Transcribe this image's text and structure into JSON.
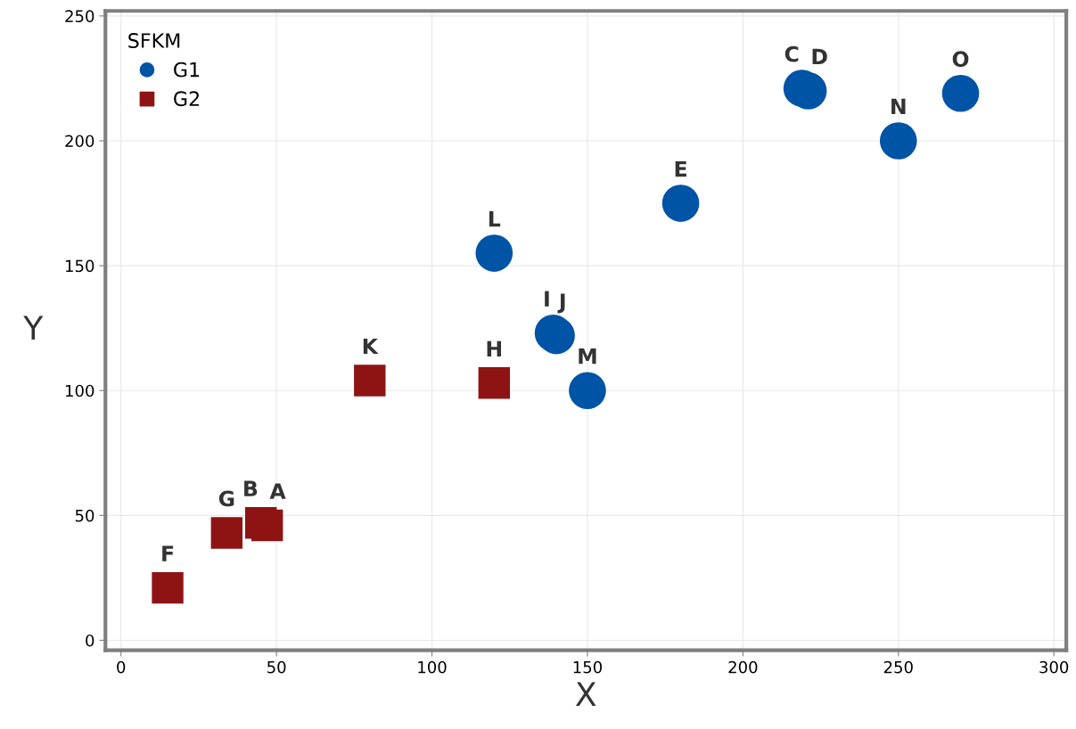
{
  "chart_data": {
    "type": "scatter",
    "xlabel": "X",
    "ylabel": "Y",
    "legend_title": "SFKM",
    "legend": "top left",
    "grid": true,
    "xlim": [
      -5,
      304
    ],
    "ylim": [
      -4,
      252
    ],
    "xticks": [
      0,
      50,
      100,
      150,
      200,
      250,
      300
    ],
    "yticks": [
      0,
      50,
      100,
      150,
      200,
      250
    ],
    "series": [
      {
        "name": "G1",
        "color": "#0054a5",
        "marker": "circle",
        "x": [
          219,
          221,
          180,
          139,
          140,
          120,
          150,
          250,
          270
        ],
        "values": [
          221,
          220,
          175,
          123,
          122,
          155,
          100,
          200,
          219
        ],
        "value_labels": [
          "C",
          "D",
          "E",
          "I",
          "J",
          "L",
          "M",
          "N",
          "O"
        ]
      },
      {
        "name": "G2",
        "color": "#8e1414",
        "marker": "square",
        "x": [
          47,
          45,
          15,
          34,
          120,
          80
        ],
        "values": [
          46,
          47,
          21,
          43,
          103,
          104
        ],
        "value_labels": [
          "A",
          "B",
          "F",
          "G",
          "H",
          "K"
        ]
      }
    ]
  }
}
